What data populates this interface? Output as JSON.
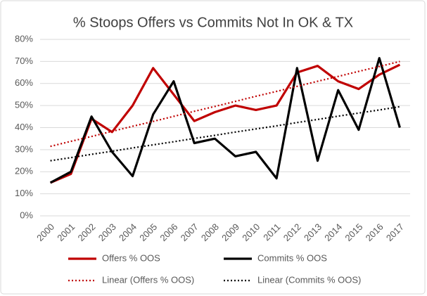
{
  "chart_data": {
    "type": "line",
    "title": "% Stoops Offers vs Commits Not In OK & TX",
    "categories": [
      "2000",
      "2001",
      "2002",
      "2003",
      "2004",
      "2005",
      "2006",
      "2007",
      "2008",
      "2009",
      "2010",
      "2011",
      "2012",
      "2013",
      "2014",
      "2015",
      "2016",
      "2017"
    ],
    "series": [
      {
        "name": "Offers % OOS",
        "color": "#c00000",
        "style": "solid",
        "values": [
          15,
          19,
          44,
          38,
          50,
          67,
          55,
          43,
          47,
          50,
          48,
          50,
          65,
          68,
          61,
          57.5,
          64,
          68.5
        ]
      },
      {
        "name": "Commits % OOS",
        "color": "#000000",
        "style": "solid",
        "values": [
          15,
          20,
          45,
          29,
          18,
          46,
          61,
          33,
          35,
          27,
          29,
          17,
          67,
          25,
          57,
          39,
          71.5,
          40
        ]
      },
      {
        "name": "Linear (Offers % OOS)",
        "color": "#c00000",
        "style": "dotted",
        "values": [
          31.5,
          33.8,
          36.0,
          38.3,
          40.6,
          42.8,
          45.1,
          47.4,
          49.6,
          51.9,
          54.2,
          56.4,
          58.7,
          61.0,
          63.2,
          65.5,
          67.7,
          70.0
        ]
      },
      {
        "name": "Linear (Commits % OOS)",
        "color": "#000000",
        "style": "dotted",
        "values": [
          25,
          26.4,
          27.9,
          29.3,
          30.8,
          32.2,
          33.6,
          35.1,
          36.5,
          38.0,
          39.4,
          40.8,
          42.3,
          43.7,
          45.2,
          46.6,
          48.0,
          49.5
        ]
      }
    ],
    "ylim": [
      0,
      80
    ],
    "yticks": [
      {
        "value": 0,
        "label": "0%"
      },
      {
        "value": 10,
        "label": "10%"
      },
      {
        "value": 20,
        "label": "20%"
      },
      {
        "value": 30,
        "label": "30%"
      },
      {
        "value": 40,
        "label": "40%"
      },
      {
        "value": 50,
        "label": "50%"
      },
      {
        "value": 60,
        "label": "60%"
      },
      {
        "value": 70,
        "label": "70%"
      },
      {
        "value": 80,
        "label": "80%"
      }
    ],
    "grid": true,
    "legend": "bottom"
  }
}
